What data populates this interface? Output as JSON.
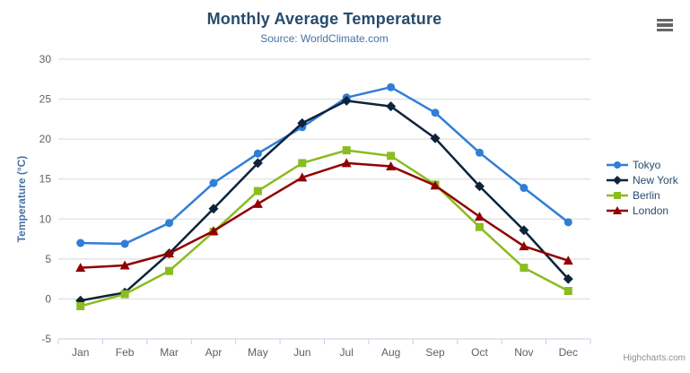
{
  "credits": "Highcharts.com",
  "menu": {
    "icon": "hamburger-icon"
  },
  "chart_data": {
    "type": "line",
    "title": "Monthly Average Temperature",
    "subtitle": "Source: WorldClimate.com",
    "xlabel": "",
    "ylabel": "Temperature (°C)",
    "ylim": [
      -5,
      30
    ],
    "y_ticks": [
      -5,
      0,
      5,
      10,
      15,
      20,
      25,
      30
    ],
    "grid": true,
    "legend_position": "right",
    "categories": [
      "Jan",
      "Feb",
      "Mar",
      "Apr",
      "May",
      "Jun",
      "Jul",
      "Aug",
      "Sep",
      "Oct",
      "Nov",
      "Dec"
    ],
    "series": [
      {
        "name": "Tokyo",
        "color": "#2f7ed8",
        "marker": "circle",
        "values": [
          7.0,
          6.9,
          9.5,
          14.5,
          18.2,
          21.5,
          25.2,
          26.5,
          23.3,
          18.3,
          13.9,
          9.6
        ]
      },
      {
        "name": "New York",
        "color": "#0d233a",
        "marker": "diamond",
        "values": [
          -0.2,
          0.8,
          5.7,
          11.3,
          17.0,
          22.0,
          24.8,
          24.1,
          20.1,
          14.1,
          8.6,
          2.5
        ]
      },
      {
        "name": "Berlin",
        "color": "#8bbc21",
        "marker": "square",
        "values": [
          -0.9,
          0.6,
          3.5,
          8.4,
          13.5,
          17.0,
          18.6,
          17.9,
          14.3,
          9.0,
          3.9,
          1.0
        ]
      },
      {
        "name": "London",
        "color": "#910000",
        "marker": "triangle",
        "values": [
          3.9,
          4.2,
          5.7,
          8.5,
          11.9,
          15.2,
          17.0,
          16.6,
          14.2,
          10.3,
          6.6,
          4.8
        ]
      }
    ],
    "style_colors": {
      "grid_line": "#d8d8d8",
      "axis_line": "#c0d0e0",
      "tick_label": "#606060"
    }
  }
}
